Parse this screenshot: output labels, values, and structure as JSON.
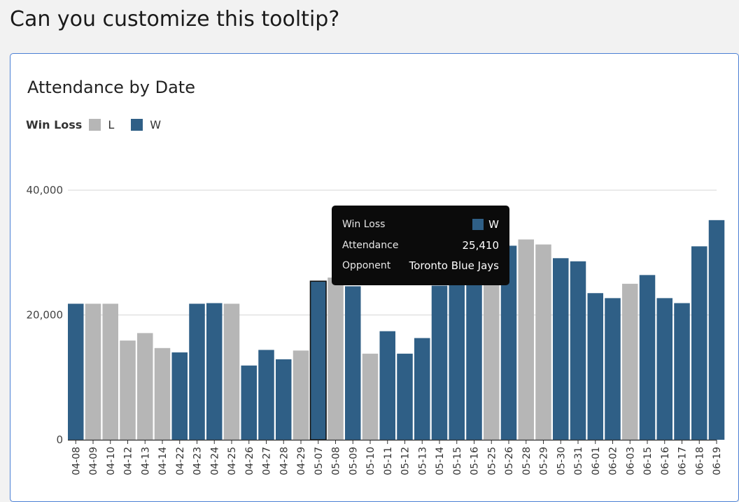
{
  "question": "Can you customize this tooltip?",
  "colors": {
    "W": "#2f5f86",
    "L": "#b6b6b6",
    "grid": "#d6d6d6",
    "border": "#4a7fd4"
  },
  "legend": {
    "title": "Win Loss",
    "items": [
      {
        "key": "L",
        "label": "L"
      },
      {
        "key": "W",
        "label": "W"
      }
    ]
  },
  "tooltip": {
    "rows": [
      {
        "key": "Win Loss",
        "value": "W",
        "swatch": "W"
      },
      {
        "key": "Attendance",
        "value": "25,410"
      },
      {
        "key": "Opponent",
        "value": "Toronto Blue Jays"
      }
    ]
  },
  "chart_data": {
    "type": "bar",
    "title": "Attendance by Date",
    "xlabel": "",
    "ylabel": "",
    "ylim": [
      0,
      40000
    ],
    "yticks": [
      0,
      20000,
      40000
    ],
    "ytick_labels": [
      "0",
      "20,000",
      "40,000"
    ],
    "grid": true,
    "legend_position": "top-left",
    "highlighted": "05-07",
    "categories": [
      "04-08",
      "04-09",
      "04-10",
      "04-12",
      "04-13",
      "04-14",
      "04-22",
      "04-23",
      "04-24",
      "04-25",
      "04-26",
      "04-27",
      "04-28",
      "04-29",
      "05-07",
      "05-08",
      "05-09",
      "05-10",
      "05-11",
      "05-12",
      "05-13",
      "05-14",
      "05-15",
      "05-16",
      "05-25",
      "05-26",
      "05-28",
      "05-29",
      "05-30",
      "05-31",
      "06-01",
      "06-02",
      "06-03",
      "06-15",
      "06-16",
      "06-17",
      "06-18",
      "06-19"
    ],
    "values": [
      21800,
      21800,
      21800,
      15900,
      17100,
      14700,
      14000,
      21800,
      21900,
      21800,
      11900,
      14400,
      12900,
      14300,
      25410,
      26000,
      24600,
      13800,
      17400,
      13800,
      16300,
      24700,
      25000,
      25800,
      25500,
      31100,
      32100,
      31300,
      29100,
      28600,
      23500,
      22700,
      25000,
      26400,
      22700,
      21900,
      31000,
      35200
    ],
    "results": [
      "W",
      "L",
      "L",
      "L",
      "L",
      "L",
      "W",
      "W",
      "W",
      "L",
      "W",
      "W",
      "W",
      "L",
      "W",
      "L",
      "W",
      "L",
      "W",
      "W",
      "W",
      "W",
      "W",
      "W",
      "L",
      "W",
      "L",
      "L",
      "W",
      "W",
      "W",
      "W",
      "L",
      "W",
      "W",
      "W",
      "W",
      "W"
    ]
  }
}
